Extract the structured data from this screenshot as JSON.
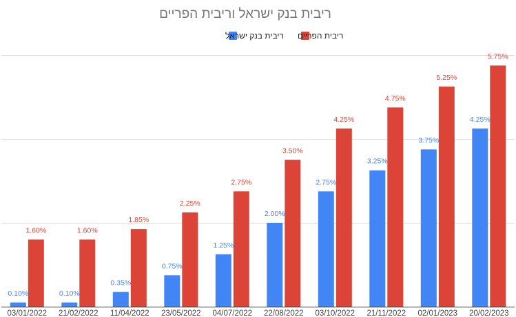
{
  "chart_data": {
    "type": "bar",
    "title": "ריבית בנק ישראל וריבית הפריים",
    "xlabel": "",
    "ylabel": "",
    "ylim": [
      0,
      0.06
    ],
    "grid": true,
    "legend_position": "top",
    "categories": [
      "03/01/2022",
      "21/02/2022",
      "11/04/2022",
      "23/05/2022",
      "04/07/2022",
      "22/08/2022",
      "03/10/2022",
      "21/11/2022",
      "02/01/2023",
      "20/02/2023"
    ],
    "series": [
      {
        "name": "ריבית בנק ישראל",
        "color": "#4285f4",
        "values": [
          0.001,
          0.001,
          0.0035,
          0.0075,
          0.0125,
          0.02,
          0.0275,
          0.0325,
          0.0375,
          0.0425
        ],
        "labels": [
          "0.10%",
          "0.10%",
          "0.35%",
          "0.75%",
          "1.25%",
          "2.00%",
          "2.75%",
          "3.25%",
          "3.75%",
          "4.25%"
        ]
      },
      {
        "name": "ריבית הפריים",
        "color": "#db4437",
        "values": [
          0.016,
          0.016,
          0.0185,
          0.0225,
          0.0275,
          0.035,
          0.0425,
          0.0475,
          0.0525,
          0.0575
        ],
        "labels": [
          "1.60%",
          "1.60%",
          "1.85%",
          "2.25%",
          "2.75%",
          "3.50%",
          "4.25%",
          "4.75%",
          "5.25%",
          "5.75%"
        ]
      }
    ]
  }
}
